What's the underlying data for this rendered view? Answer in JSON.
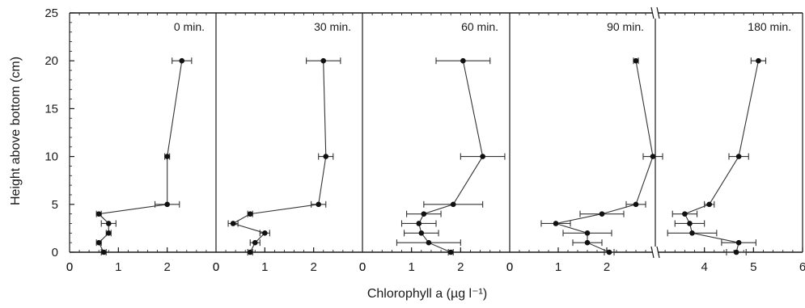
{
  "chart_data": {
    "type": "line",
    "xlabel": "Chlorophyll a (µg l⁻¹)",
    "ylabel": "Height above bottom (cm)",
    "ylim": [
      0,
      25
    ],
    "yticks": [
      0,
      5,
      10,
      15,
      20,
      25
    ],
    "grid": false,
    "legend": "none",
    "colors": {
      "line": "#333333",
      "axis": "#1a1a1a",
      "background": "#ffffff"
    },
    "panels": [
      {
        "name": "0 min.",
        "xlim": [
          0,
          3
        ],
        "xticks": [
          0,
          1,
          2
        ],
        "x_break_at_right": false,
        "points": [
          {
            "y": 20,
            "x": 2.3,
            "err": 0.2
          },
          {
            "y": 10,
            "x": 2.0,
            "err": 0.05
          },
          {
            "y": 5,
            "x": 2.0,
            "err": 0.25
          },
          {
            "y": 4,
            "x": 0.6,
            "err": 0.05
          },
          {
            "y": 3,
            "x": 0.8,
            "err": 0.15
          },
          {
            "y": 2,
            "x": 0.8,
            "err": 0.05
          },
          {
            "y": 1,
            "x": 0.6,
            "err": 0.05
          },
          {
            "y": 0,
            "x": 0.7,
            "err": 0.05
          }
        ]
      },
      {
        "name": "30 min.",
        "xlim": [
          0,
          3
        ],
        "xticks": [
          0,
          1,
          2
        ],
        "x_break_at_right": false,
        "points": [
          {
            "y": 20,
            "x": 2.2,
            "err": 0.35
          },
          {
            "y": 10,
            "x": 2.25,
            "err": 0.15
          },
          {
            "y": 5,
            "x": 2.1,
            "err": 0.15
          },
          {
            "y": 4,
            "x": 0.7,
            "err": 0.05
          },
          {
            "y": 3,
            "x": 0.35,
            "err": 0.1
          },
          {
            "y": 2,
            "x": 1.0,
            "err": 0.1
          },
          {
            "y": 1,
            "x": 0.8,
            "err": 0.1
          },
          {
            "y": 0,
            "x": 0.7,
            "err": 0.05
          }
        ]
      },
      {
        "name": "60 min.",
        "xlim": [
          0,
          3
        ],
        "xticks": [
          0,
          1,
          2
        ],
        "x_break_at_right": false,
        "points": [
          {
            "y": 20,
            "x": 2.05,
            "err": 0.55
          },
          {
            "y": 10,
            "x": 2.45,
            "err": 0.45
          },
          {
            "y": 5,
            "x": 1.85,
            "err": 0.6
          },
          {
            "y": 4,
            "x": 1.25,
            "err": 0.35
          },
          {
            "y": 3,
            "x": 1.15,
            "err": 0.35
          },
          {
            "y": 2,
            "x": 1.2,
            "err": 0.35
          },
          {
            "y": 1,
            "x": 1.35,
            "err": 0.65
          },
          {
            "y": 0,
            "x": 1.8,
            "err": 0.05
          }
        ]
      },
      {
        "name": "90 min.",
        "xlim": [
          0,
          3
        ],
        "xticks": [
          0,
          1,
          2
        ],
        "x_break_at_right": true,
        "points": [
          {
            "y": 20,
            "x": 2.6,
            "err": 0.05
          },
          {
            "y": 10,
            "x": 2.95,
            "err": 0.2
          },
          {
            "y": 5,
            "x": 2.6,
            "err": 0.2
          },
          {
            "y": 4,
            "x": 1.9,
            "err": 0.45
          },
          {
            "y": 3,
            "x": 0.95,
            "err": 0.3
          },
          {
            "y": 2,
            "x": 1.6,
            "err": 0.5
          },
          {
            "y": 1,
            "x": 1.6,
            "err": 0.3
          },
          {
            "y": 0,
            "x": 2.05,
            "err": 0.1
          }
        ]
      },
      {
        "name": "180 min.",
        "xlim": [
          3,
          6
        ],
        "xticks": [
          4,
          5,
          6
        ],
        "x_break_at_left": true,
        "points": [
          {
            "y": 20,
            "x": 5.1,
            "err": 0.15
          },
          {
            "y": 10,
            "x": 4.7,
            "err": 0.2
          },
          {
            "y": 5,
            "x": 4.1,
            "err": 0.1
          },
          {
            "y": 4,
            "x": 3.6,
            "err": 0.25
          },
          {
            "y": 3,
            "x": 3.7,
            "err": 0.3
          },
          {
            "y": 2,
            "x": 3.75,
            "err": 0.5
          },
          {
            "y": 1,
            "x": 4.7,
            "err": 0.35
          },
          {
            "y": 0,
            "x": 4.65,
            "err": 0.2
          }
        ]
      }
    ]
  }
}
